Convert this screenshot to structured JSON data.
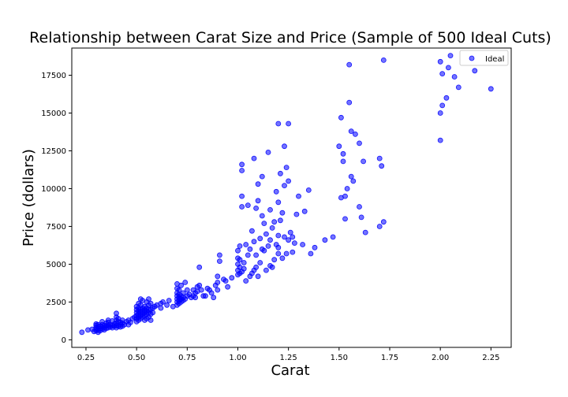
{
  "chart_data": {
    "type": "scatter",
    "title": "Relationship between Carat Size and Price (Sample of 500 Ideal Cuts)",
    "xlabel": "Carat",
    "ylabel": "Price (dollars)",
    "xlim": [
      0.18,
      2.35
    ],
    "ylim": [
      -500,
      19300
    ],
    "xticks": [
      0.25,
      0.5,
      0.75,
      1.0,
      1.25,
      1.5,
      1.75,
      2.0,
      2.25
    ],
    "xtick_labels": [
      "0.25",
      "0.50",
      "0.75",
      "1.00",
      "1.25",
      "1.50",
      "1.75",
      "2.00",
      "2.25"
    ],
    "yticks": [
      0,
      2500,
      5000,
      7500,
      10000,
      12500,
      15000,
      17500
    ],
    "ytick_labels": [
      "0",
      "2500",
      "5000",
      "7500",
      "10000",
      "12500",
      "15000",
      "17500"
    ],
    "grid": false,
    "legend_position": "top-right",
    "color": "#0000ff",
    "series": [
      {
        "name": "Ideal",
        "points": [
          [
            0.23,
            500
          ],
          [
            0.26,
            650
          ],
          [
            0.28,
            700
          ],
          [
            0.29,
            550
          ],
          [
            0.3,
            600
          ],
          [
            0.3,
            700
          ],
          [
            0.3,
            800
          ],
          [
            0.3,
            950
          ],
          [
            0.3,
            1050
          ],
          [
            0.31,
            500
          ],
          [
            0.31,
            650
          ],
          [
            0.31,
            850
          ],
          [
            0.31,
            1000
          ],
          [
            0.32,
            600
          ],
          [
            0.32,
            750
          ],
          [
            0.32,
            900
          ],
          [
            0.33,
            700
          ],
          [
            0.33,
            850
          ],
          [
            0.33,
            1000
          ],
          [
            0.34,
            650
          ],
          [
            0.34,
            800
          ],
          [
            0.34,
            950
          ],
          [
            0.35,
            750
          ],
          [
            0.35,
            900
          ],
          [
            0.35,
            1100
          ],
          [
            0.36,
            800
          ],
          [
            0.36,
            950
          ],
          [
            0.36,
            1150
          ],
          [
            0.37,
            850
          ],
          [
            0.37,
            1000
          ],
          [
            0.38,
            800
          ],
          [
            0.38,
            950
          ],
          [
            0.38,
            1250
          ],
          [
            0.39,
            900
          ],
          [
            0.39,
            1050
          ],
          [
            0.4,
            800
          ],
          [
            0.4,
            950
          ],
          [
            0.4,
            1100
          ],
          [
            0.4,
            1300
          ],
          [
            0.4,
            1500
          ],
          [
            0.4,
            1750
          ],
          [
            0.41,
            900
          ],
          [
            0.41,
            1200
          ],
          [
            0.41,
            1400
          ],
          [
            0.42,
            850
          ],
          [
            0.42,
            1000
          ],
          [
            0.42,
            1150
          ],
          [
            0.43,
            1100
          ],
          [
            0.43,
            1300
          ],
          [
            0.44,
            1000
          ],
          [
            0.45,
            1200
          ],
          [
            0.46,
            1300
          ],
          [
            0.47,
            1150
          ],
          [
            0.48,
            1400
          ],
          [
            0.5,
            1200
          ],
          [
            0.5,
            1400
          ],
          [
            0.5,
            1600
          ],
          [
            0.5,
            1800
          ],
          [
            0.5,
            2000
          ],
          [
            0.5,
            2200
          ],
          [
            0.51,
            1300
          ],
          [
            0.51,
            1500
          ],
          [
            0.51,
            1700
          ],
          [
            0.51,
            1900
          ],
          [
            0.51,
            2100
          ],
          [
            0.51,
            2400
          ],
          [
            0.52,
            1400
          ],
          [
            0.52,
            1600
          ],
          [
            0.52,
            1800
          ],
          [
            0.52,
            2000
          ],
          [
            0.52,
            2300
          ],
          [
            0.52,
            2700
          ],
          [
            0.53,
            1500
          ],
          [
            0.53,
            1700
          ],
          [
            0.53,
            1900
          ],
          [
            0.53,
            2100
          ],
          [
            0.54,
            1300
          ],
          [
            0.54,
            1600
          ],
          [
            0.54,
            1800
          ],
          [
            0.54,
            2000
          ],
          [
            0.54,
            2200
          ],
          [
            0.55,
            1400
          ],
          [
            0.55,
            1700
          ],
          [
            0.55,
            1900
          ],
          [
            0.55,
            2100
          ],
          [
            0.55,
            2500
          ],
          [
            0.56,
            1500
          ],
          [
            0.56,
            1800
          ],
          [
            0.56,
            2000
          ],
          [
            0.56,
            2300
          ],
          [
            0.57,
            1300
          ],
          [
            0.57,
            1700
          ],
          [
            0.57,
            2000
          ],
          [
            0.57,
            2400
          ],
          [
            0.58,
            1800
          ],
          [
            0.58,
            2100
          ],
          [
            0.59,
            2200
          ],
          [
            0.6,
            2300
          ],
          [
            0.62,
            2400
          ],
          [
            0.65,
            2300
          ],
          [
            0.68,
            2200
          ],
          [
            0.7,
            2300
          ],
          [
            0.7,
            2500
          ],
          [
            0.7,
            2700
          ],
          [
            0.7,
            2900
          ],
          [
            0.7,
            3100
          ],
          [
            0.7,
            3400
          ],
          [
            0.7,
            3700
          ],
          [
            0.71,
            2400
          ],
          [
            0.71,
            2600
          ],
          [
            0.71,
            2800
          ],
          [
            0.71,
            3000
          ],
          [
            0.71,
            3300
          ],
          [
            0.72,
            2500
          ],
          [
            0.72,
            2700
          ],
          [
            0.72,
            2900
          ],
          [
            0.72,
            3600
          ],
          [
            0.73,
            2600
          ],
          [
            0.73,
            2800
          ],
          [
            0.73,
            3100
          ],
          [
            0.74,
            2700
          ],
          [
            0.74,
            3800
          ],
          [
            0.75,
            2900
          ],
          [
            0.76,
            3000
          ],
          [
            0.77,
            2800
          ],
          [
            0.78,
            2900
          ],
          [
            0.78,
            3300
          ],
          [
            0.79,
            3100
          ],
          [
            0.8,
            3200
          ],
          [
            0.8,
            3500
          ],
          [
            0.81,
            3600
          ],
          [
            0.81,
            4800
          ],
          [
            0.82,
            3300
          ],
          [
            0.83,
            2900
          ],
          [
            0.85,
            3400
          ],
          [
            0.87,
            3100
          ],
          [
            0.88,
            2800
          ],
          [
            0.9,
            3300
          ],
          [
            0.9,
            3800
          ],
          [
            0.9,
            4200
          ],
          [
            0.91,
            5200
          ],
          [
            0.91,
            5600
          ],
          [
            0.93,
            4000
          ],
          [
            0.95,
            3500
          ],
          [
            0.97,
            4100
          ],
          [
            1.0,
            4300
          ],
          [
            1.0,
            4600
          ],
          [
            1.0,
            5000
          ],
          [
            1.0,
            5400
          ],
          [
            1.0,
            5900
          ],
          [
            1.01,
            4400
          ],
          [
            1.01,
            4800
          ],
          [
            1.01,
            5300
          ],
          [
            1.01,
            6200
          ],
          [
            1.02,
            4500
          ],
          [
            1.02,
            8800
          ],
          [
            1.02,
            9500
          ],
          [
            1.02,
            11200
          ],
          [
            1.02,
            11600
          ],
          [
            1.03,
            4700
          ],
          [
            1.03,
            5100
          ],
          [
            1.04,
            3900
          ],
          [
            1.04,
            6300
          ],
          [
            1.05,
            8900
          ],
          [
            1.06,
            4200
          ],
          [
            1.06,
            6000
          ],
          [
            1.07,
            4400
          ],
          [
            1.07,
            7200
          ],
          [
            1.08,
            4600
          ],
          [
            1.08,
            6500
          ],
          [
            1.09,
            4800
          ],
          [
            1.09,
            5600
          ],
          [
            1.09,
            8700
          ],
          [
            1.1,
            10300
          ],
          [
            1.1,
            9200
          ],
          [
            1.1,
            4200
          ],
          [
            1.11,
            5100
          ],
          [
            1.11,
            6700
          ],
          [
            1.12,
            8200
          ],
          [
            1.12,
            10800
          ],
          [
            1.13,
            5900
          ],
          [
            1.14,
            4600
          ],
          [
            1.14,
            7000
          ],
          [
            1.15,
            6200
          ],
          [
            1.15,
            12400
          ],
          [
            1.16,
            4900
          ],
          [
            1.16,
            6600
          ],
          [
            1.16,
            8600
          ],
          [
            1.17,
            7400
          ],
          [
            1.18,
            5300
          ],
          [
            1.18,
            7800
          ],
          [
            1.19,
            9800
          ],
          [
            1.2,
            5700
          ],
          [
            1.2,
            6100
          ],
          [
            1.2,
            6900
          ],
          [
            1.2,
            9100
          ],
          [
            1.21,
            7900
          ],
          [
            1.21,
            11000
          ],
          [
            1.22,
            5400
          ],
          [
            1.22,
            8400
          ],
          [
            1.23,
            6800
          ],
          [
            1.23,
            10200
          ],
          [
            1.24,
            5700
          ],
          [
            1.24,
            11400
          ],
          [
            1.25,
            6600
          ],
          [
            1.25,
            10500
          ],
          [
            1.25,
            14300
          ],
          [
            1.26,
            7100
          ],
          [
            1.27,
            5800
          ],
          [
            1.28,
            6400
          ],
          [
            1.29,
            8300
          ],
          [
            1.3,
            9500
          ],
          [
            1.32,
            6300
          ],
          [
            1.33,
            8500
          ],
          [
            1.35,
            9900
          ],
          [
            1.36,
            5700
          ],
          [
            1.38,
            6100
          ],
          [
            1.2,
            14300
          ],
          [
            1.08,
            12000
          ],
          [
            1.23,
            12800
          ],
          [
            1.5,
            12800
          ],
          [
            1.51,
            14700
          ],
          [
            1.51,
            9400
          ],
          [
            1.52,
            12300
          ],
          [
            1.52,
            11800
          ],
          [
            1.53,
            9500
          ],
          [
            1.53,
            8000
          ],
          [
            1.54,
            10000
          ],
          [
            1.55,
            18200
          ],
          [
            1.55,
            15700
          ],
          [
            1.56,
            10800
          ],
          [
            1.56,
            13800
          ],
          [
            1.57,
            10500
          ],
          [
            1.58,
            13600
          ],
          [
            1.6,
            13000
          ],
          [
            1.6,
            8800
          ],
          [
            1.61,
            8100
          ],
          [
            1.62,
            11800
          ],
          [
            1.63,
            7100
          ],
          [
            1.7,
            7500
          ],
          [
            1.7,
            12000
          ],
          [
            1.71,
            11500
          ],
          [
            1.72,
            7800
          ],
          [
            1.72,
            18500
          ],
          [
            1.43,
            6600
          ],
          [
            1.47,
            6800
          ],
          [
            2.0,
            18400
          ],
          [
            2.0,
            15000
          ],
          [
            2.0,
            13200
          ],
          [
            2.01,
            15500
          ],
          [
            2.01,
            17600
          ],
          [
            2.03,
            16000
          ],
          [
            2.04,
            18000
          ],
          [
            2.05,
            18800
          ],
          [
            2.07,
            17400
          ],
          [
            2.09,
            16700
          ],
          [
            2.17,
            17800
          ],
          [
            2.25,
            16600
          ],
          [
            0.33,
            1200
          ],
          [
            0.36,
            1300
          ],
          [
            0.43,
            900
          ],
          [
            0.46,
            1000
          ],
          [
            0.49,
            1500
          ],
          [
            0.53,
            2600
          ],
          [
            0.56,
            2700
          ],
          [
            0.62,
            2100
          ],
          [
            0.63,
            2500
          ],
          [
            0.66,
            2600
          ],
          [
            0.75,
            3300
          ],
          [
            0.79,
            2800
          ],
          [
            0.84,
            2900
          ],
          [
            0.86,
            3300
          ],
          [
            0.89,
            3600
          ],
          [
            0.94,
            3900
          ],
          [
            1.05,
            5600
          ],
          [
            1.12,
            6000
          ],
          [
            1.17,
            4800
          ],
          [
            1.19,
            6300
          ],
          [
            1.27,
            6800
          ],
          [
            1.13,
            7700
          ]
        ]
      }
    ]
  }
}
